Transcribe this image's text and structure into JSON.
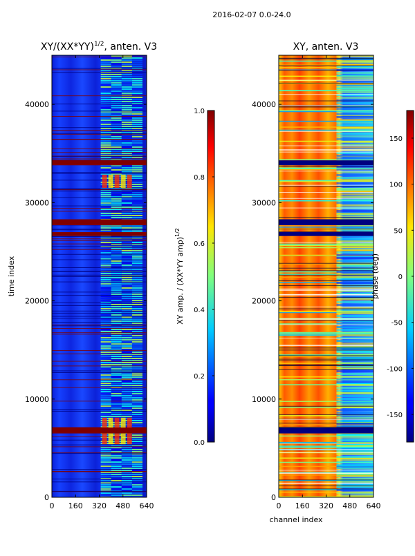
{
  "suptitle": "2016-02-07 0.0-24.0",
  "chart_data": [
    {
      "type": "heatmap",
      "title": "XY/(XX*YY)",
      "title_exponent": "1/2",
      "title_suffix": ", anten. V3",
      "xlabel": "",
      "ylabel": "time index",
      "xlim": [
        0,
        640
      ],
      "ylim": [
        0,
        45000
      ],
      "xticks": [
        "0",
        "160",
        "320",
        "480",
        "640"
      ],
      "yticks": [
        "0",
        "10000",
        "20000",
        "30000",
        "40000"
      ],
      "colorbar": {
        "label": "XY amp. / (XX*YY amp)",
        "label_exponent": "1/2",
        "range": [
          0.0,
          1.0
        ],
        "ticks": [
          "0.0",
          "0.2",
          "0.4",
          "0.6",
          "0.8",
          "1.0"
        ],
        "colormap": "jet"
      },
      "saturated_bands_time_index": [
        {
          "from": 6500,
          "to": 7100
        },
        {
          "from": 26600,
          "to": 27000
        },
        {
          "from": 27700,
          "to": 28300
        },
        {
          "from": 33800,
          "to": 34300
        }
      ],
      "noisy_channel_range": [
        330,
        640
      ]
    },
    {
      "type": "heatmap",
      "title": "XY, anten. V3",
      "xlabel": "channel index",
      "ylabel": "",
      "xlim": [
        0,
        640
      ],
      "ylim": [
        0,
        45000
      ],
      "xticks": [
        "0",
        "160",
        "320",
        "480",
        "640"
      ],
      "yticks": [
        "0",
        "10000",
        "20000",
        "30000",
        "40000"
      ],
      "colorbar": {
        "label": "phase (deg)",
        "range": [
          -180,
          180
        ],
        "ticks": [
          "-150",
          "-100",
          "-50",
          "0",
          "50",
          "100",
          "150"
        ],
        "colormap": "jet"
      },
      "flagged_bands_time_index": [
        {
          "from": 6500,
          "to": 7100
        },
        {
          "from": 26600,
          "to": 27000
        },
        {
          "from": 27700,
          "to": 28300
        },
        {
          "from": 33800,
          "to": 34300
        }
      ],
      "noisy_channel_range": [
        390,
        640
      ]
    }
  ],
  "colors": {
    "jet_low": "#00007f",
    "jet_mid": "#7fff7f",
    "jet_high": "#7f0000"
  }
}
